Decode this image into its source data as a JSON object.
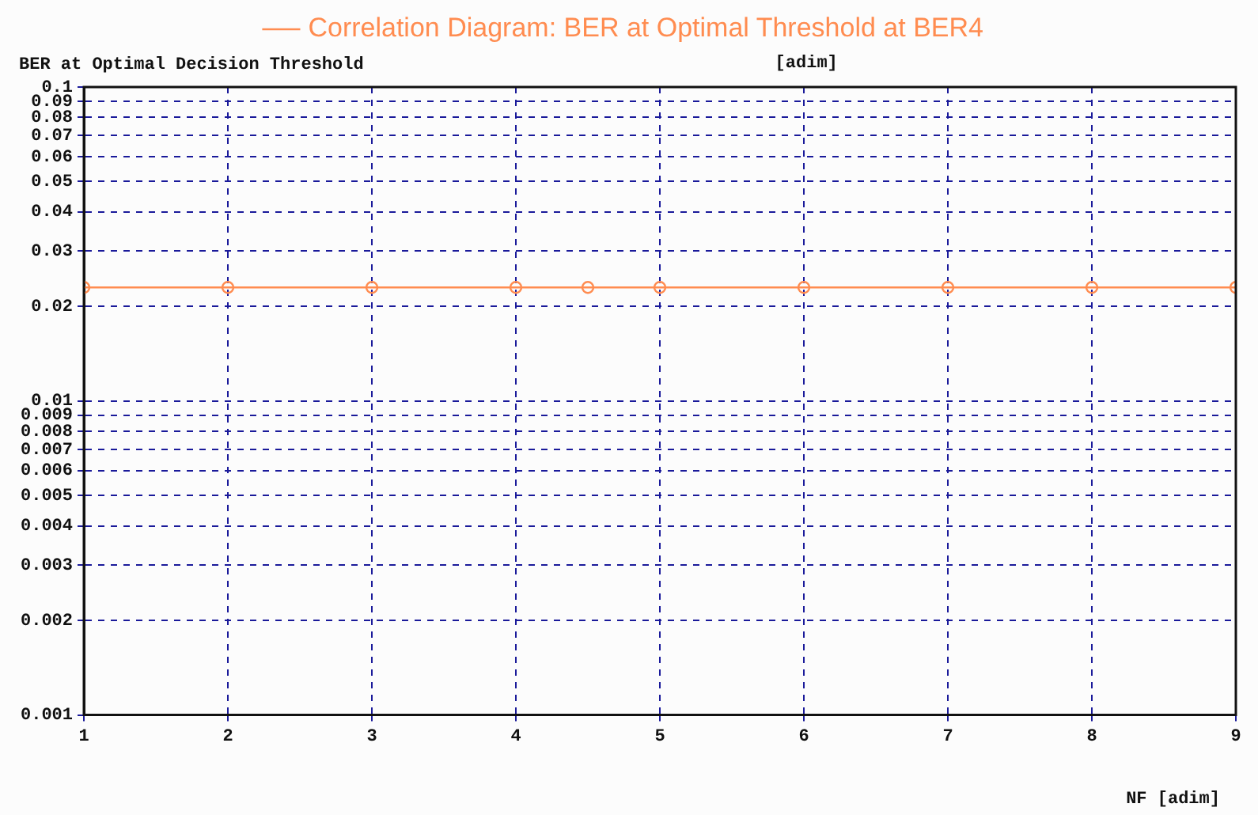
{
  "chart_data": {
    "type": "line",
    "ylabel": "BER at Optimal Decision Threshold",
    "xlabel": "NF [adim]",
    "annotations": [
      "[adim]"
    ],
    "x": [
      1,
      2,
      3,
      4,
      4.5,
      5,
      6,
      7,
      8,
      9
    ],
    "series": [
      {
        "name": "Correlation Diagram: BER at Optimal Threshold at BER4",
        "color": "#ff8c50",
        "values": [
          0.023,
          0.023,
          0.023,
          0.023,
          0.023,
          0.023,
          0.023,
          0.023,
          0.023,
          0.023
        ]
      }
    ],
    "log": "y",
    "xlim": [
      1,
      9
    ],
    "xticks": [
      1,
      2,
      3,
      4,
      5,
      6,
      7,
      8,
      9
    ],
    "ylim": [
      0.001,
      0.1
    ],
    "yticks": [
      0.001,
      0.002,
      0.003,
      0.004,
      0.005,
      0.006,
      0.007,
      0.008,
      0.009,
      0.01,
      0.02,
      0.03,
      0.04,
      0.05,
      0.06,
      0.07,
      0.08,
      0.09,
      0.1
    ],
    "grid": true,
    "legend": "top",
    "marker": "circle",
    "line_style": "solid"
  }
}
